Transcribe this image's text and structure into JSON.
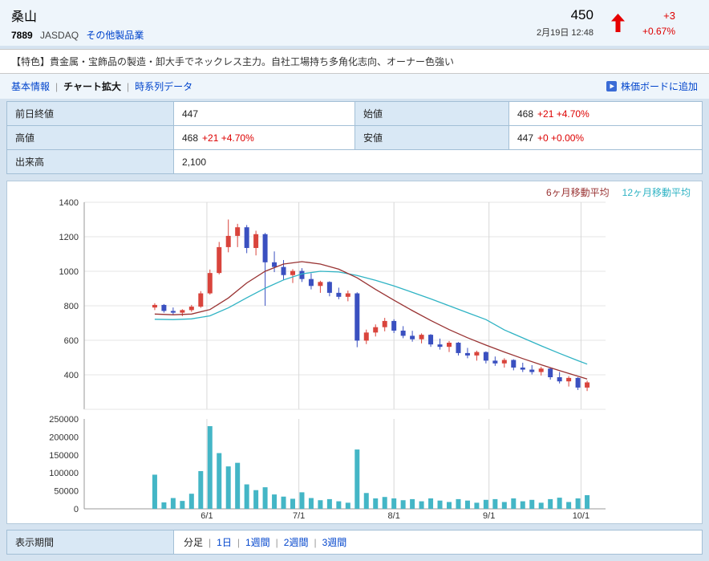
{
  "header": {
    "company_name": "桑山",
    "code": "7889",
    "market": "JASDAQ",
    "industry": "その他製品業",
    "price": "450",
    "datetime": "2月19日 12:48",
    "change": "+3",
    "change_pct": "+0.67%"
  },
  "feature": {
    "text": "【特色】貴金属・宝飾品の製造・卸大手でネックレス主力。自社工場持ち多角化志向、オーナー色強い"
  },
  "nav": {
    "basic": "基本情報",
    "chart": "チャート拡大",
    "timeseries": "時系列データ",
    "add_board": "株価ボードに追加",
    "separator": "|"
  },
  "quote_table": {
    "prev_close_label": "前日終値",
    "prev_close": "447",
    "open_label": "始値",
    "open": "468",
    "open_change": "+21 +4.70%",
    "high_label": "高値",
    "high": "468",
    "high_change": "+21 +4.70%",
    "low_label": "安値",
    "low": "447",
    "low_change": "+0 +0.00%",
    "volume_label": "出来高",
    "volume": "2,100"
  },
  "period": {
    "label": "表示期間",
    "separator": "|",
    "options": [
      {
        "label": "分足",
        "link": false
      },
      {
        "label": "1日",
        "link": true
      },
      {
        "label": "1週間",
        "link": true
      },
      {
        "label": "2週間",
        "link": true
      },
      {
        "label": "3週間",
        "link": true
      }
    ]
  },
  "colors": {
    "positive_red": "#dd0000",
    "link_blue": "#0044cc",
    "label_cell_blue": "#d9e8f5"
  },
  "chart_data": {
    "type": "candlestick",
    "title": "",
    "xlabel": "",
    "ylabel": "",
    "price_axis": {
      "min": 200,
      "max": 1400,
      "ticks": [
        400,
        600,
        800,
        1000,
        1200,
        1400
      ]
    },
    "volume_axis": {
      "min": 0,
      "max": 250000,
      "ticks": [
        0,
        50000,
        100000,
        150000,
        200000,
        250000
      ]
    },
    "x_ticks": [
      "6/1",
      "7/1",
      "8/1",
      "9/1",
      "10/1"
    ],
    "legend": [
      {
        "label": "6ヶ月移動平均",
        "color": "#993333"
      },
      {
        "label": "12ヶ月移動平均",
        "color": "#2fb3c4"
      }
    ],
    "colors": {
      "up": "#d9443c",
      "down": "#3a50c0",
      "volume": "#44b6c6",
      "grid": "#e4e4e4",
      "month_grid": "#d8d8d8",
      "axis": "#999999",
      "tick_text": "#333333"
    },
    "candles": [
      [
        "5/15",
        790,
        815,
        775,
        805,
        95000
      ],
      [
        "5/18",
        805,
        810,
        760,
        770,
        18000
      ],
      [
        "5/21",
        770,
        790,
        750,
        760,
        30000
      ],
      [
        "5/24",
        760,
        780,
        740,
        775,
        22000
      ],
      [
        "5/27",
        775,
        805,
        765,
        795,
        42000
      ],
      [
        "5/30",
        795,
        885,
        788,
        872,
        105000
      ],
      [
        "6/2",
        872,
        1010,
        865,
        990,
        230000
      ],
      [
        "6/5",
        990,
        1170,
        982,
        1140,
        155000
      ],
      [
        "6/8",
        1140,
        1300,
        1110,
        1205,
        118000
      ],
      [
        "6/11",
        1205,
        1275,
        1140,
        1255,
        128000
      ],
      [
        "6/14",
        1255,
        1268,
        1105,
        1135,
        68000
      ],
      [
        "6/17",
        1135,
        1235,
        1092,
        1215,
        52000
      ],
      [
        "6/20",
        1215,
        1222,
        800,
        1052,
        60000
      ],
      [
        "6/23",
        1052,
        1115,
        995,
        1025,
        40000
      ],
      [
        "6/26",
        1025,
        1065,
        948,
        978,
        34000
      ],
      [
        "6/29",
        978,
        1012,
        932,
        1002,
        28000
      ],
      [
        "7/2",
        1002,
        1018,
        938,
        955,
        46000
      ],
      [
        "7/5",
        955,
        988,
        895,
        915,
        30000
      ],
      [
        "7/8",
        915,
        945,
        875,
        938,
        24000
      ],
      [
        "7/11",
        938,
        942,
        855,
        875,
        27000
      ],
      [
        "7/14",
        875,
        905,
        838,
        852,
        21000
      ],
      [
        "7/17",
        852,
        888,
        826,
        872,
        17000
      ],
      [
        "7/20",
        872,
        878,
        560,
        598,
        165000
      ],
      [
        "7/23",
        598,
        662,
        578,
        645,
        44000
      ],
      [
        "7/26",
        645,
        692,
        622,
        676,
        29000
      ],
      [
        "7/29",
        676,
        730,
        652,
        712,
        33000
      ],
      [
        "8/1",
        712,
        722,
        642,
        656,
        29000
      ],
      [
        "8/4",
        656,
        682,
        612,
        626,
        24000
      ],
      [
        "8/7",
        626,
        655,
        592,
        606,
        27000
      ],
      [
        "8/10",
        606,
        640,
        582,
        632,
        21000
      ],
      [
        "8/13",
        632,
        636,
        562,
        576,
        29000
      ],
      [
        "8/16",
        576,
        610,
        546,
        562,
        23000
      ],
      [
        "8/19",
        562,
        596,
        532,
        586,
        19000
      ],
      [
        "8/22",
        586,
        590,
        512,
        526,
        27000
      ],
      [
        "8/25",
        526,
        556,
        496,
        512,
        23000
      ],
      [
        "8/28",
        512,
        540,
        482,
        532,
        17000
      ],
      [
        "8/31",
        532,
        536,
        466,
        482,
        25000
      ],
      [
        "9/3",
        482,
        506,
        452,
        466,
        27000
      ],
      [
        "9/6",
        466,
        496,
        442,
        486,
        19000
      ],
      [
        "9/9",
        486,
        490,
        426,
        442,
        29000
      ],
      [
        "9/12",
        442,
        470,
        416,
        430,
        21000
      ],
      [
        "9/15",
        430,
        456,
        402,
        416,
        25000
      ],
      [
        "9/18",
        416,
        446,
        396,
        436,
        17000
      ],
      [
        "9/21",
        436,
        440,
        372,
        386,
        27000
      ],
      [
        "9/24",
        386,
        416,
        350,
        362,
        31000
      ],
      [
        "9/27",
        362,
        392,
        332,
        382,
        19000
      ],
      [
        "9/30",
        382,
        386,
        312,
        326,
        29000
      ],
      [
        "10/3",
        326,
        366,
        306,
        356,
        38000
      ]
    ],
    "ma6": [
      [
        "5/15",
        752
      ],
      [
        "5/21",
        748
      ],
      [
        "5/27",
        752
      ],
      [
        "6/2",
        778
      ],
      [
        "6/8",
        845
      ],
      [
        "6/14",
        932
      ],
      [
        "6/20",
        1000
      ],
      [
        "6/26",
        1042
      ],
      [
        "7/2",
        1056
      ],
      [
        "7/8",
        1042
      ],
      [
        "7/14",
        1012
      ],
      [
        "7/20",
        962
      ],
      [
        "7/26",
        895
      ],
      [
        "8/1",
        832
      ],
      [
        "8/7",
        772
      ],
      [
        "8/13",
        715
      ],
      [
        "8/19",
        662
      ],
      [
        "8/25",
        615
      ],
      [
        "8/31",
        572
      ],
      [
        "9/6",
        532
      ],
      [
        "9/12",
        494
      ],
      [
        "9/18",
        458
      ],
      [
        "9/24",
        424
      ],
      [
        "9/30",
        392
      ],
      [
        "10/3",
        376
      ]
    ],
    "ma12": [
      [
        "5/15",
        722
      ],
      [
        "5/21",
        720
      ],
      [
        "5/27",
        724
      ],
      [
        "6/2",
        742
      ],
      [
        "6/8",
        788
      ],
      [
        "6/14",
        846
      ],
      [
        "6/20",
        902
      ],
      [
        "6/26",
        950
      ],
      [
        "7/2",
        985
      ],
      [
        "7/8",
        1000
      ],
      [
        "7/14",
        996
      ],
      [
        "7/20",
        976
      ],
      [
        "7/26",
        948
      ],
      [
        "8/1",
        915
      ],
      [
        "8/7",
        878
      ],
      [
        "8/13",
        840
      ],
      [
        "8/19",
        800
      ],
      [
        "8/25",
        760
      ],
      [
        "8/31",
        720
      ],
      [
        "9/6",
        660
      ],
      [
        "9/12",
        614
      ],
      [
        "9/18",
        568
      ],
      [
        "9/24",
        524
      ],
      [
        "9/30",
        482
      ],
      [
        "10/3",
        462
      ]
    ]
  }
}
